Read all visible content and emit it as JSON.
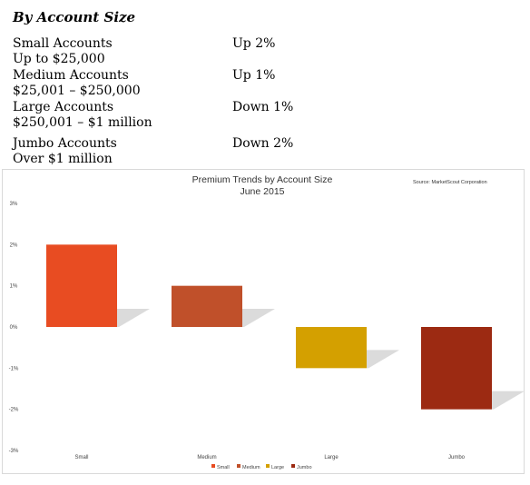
{
  "document": {
    "heading": "By Account Size",
    "rows": [
      {
        "name": "Small Accounts",
        "range": "Up to $25,000",
        "change": "Up 2%"
      },
      {
        "name": "Medium Accounts",
        "range": "$25,001 – $250,000",
        "change": "Up 1%"
      },
      {
        "name": "Large Accounts",
        "range": "$250,001 – $1 million",
        "change": "Down 1%"
      },
      {
        "name": "Jumbo Accounts",
        "range": "Over $1 million",
        "change": "Down 2%"
      }
    ]
  },
  "chart_data": {
    "type": "bar",
    "title": "Premium Trends by Account Size",
    "subtitle": "June 2015",
    "source": "Source: MarketScout Corporation",
    "categories": [
      "Small",
      "Medium",
      "Large",
      "Jumbo"
    ],
    "values": [
      2,
      1,
      -1,
      -2
    ],
    "colors": [
      "#e84c22",
      "#c0502a",
      "#d4a000",
      "#9c2a12"
    ],
    "legend": [
      "Small",
      "Medium",
      "Large",
      "Jumbo"
    ],
    "legend_position": "bottom",
    "ylim": [
      -3,
      3
    ],
    "yticks": [
      "3%",
      "2%",
      "1%",
      "0%",
      "-1%",
      "-2%",
      "-3%"
    ],
    "xlabel": "",
    "ylabel": "",
    "grid": false
  }
}
